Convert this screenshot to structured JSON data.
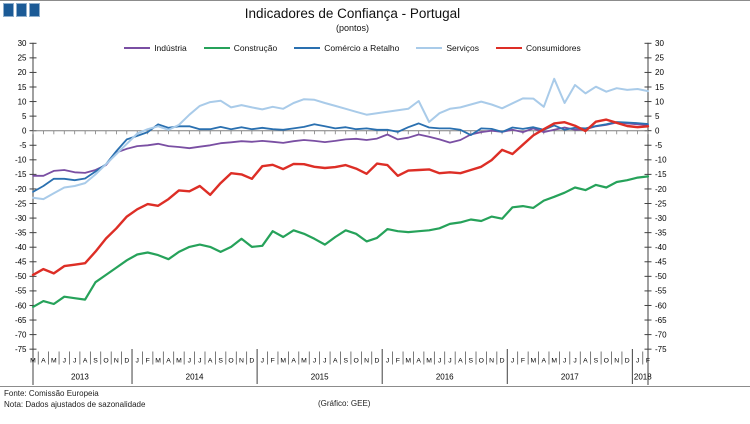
{
  "logo": {
    "square_count": 3,
    "fill": "#1b5a96",
    "border": "#8fafcd"
  },
  "footer": {
    "fonte": "Fonte: Comissão Europeia",
    "nota": "Nota: Dados ajustados de sazonalidade",
    "credito": "(Gráfico: GEE)"
  },
  "chart_data": {
    "type": "line",
    "title": "Indicadores de Confiança - Portugal",
    "subtitle": "(pontos)",
    "ylim": [
      -75,
      30
    ],
    "ytick_step": 5,
    "zero_line": true,
    "legend_position": "top",
    "axis_color": "#404040",
    "zero_line_color": "#7f7f7f",
    "x_labels": [
      "M",
      "A",
      "M",
      "J",
      "J",
      "A",
      "S",
      "O",
      "N",
      "D",
      "J",
      "F",
      "M",
      "A",
      "M",
      "J",
      "J",
      "A",
      "S",
      "O",
      "N",
      "D",
      "J",
      "F",
      "M",
      "A",
      "M",
      "J",
      "J",
      "A",
      "S",
      "O",
      "N",
      "D",
      "J",
      "F",
      "M",
      "A",
      "M",
      "J",
      "J",
      "A",
      "S",
      "O",
      "N",
      "D",
      "J",
      "F",
      "M",
      "A",
      "M",
      "J",
      "J",
      "A",
      "S",
      "O",
      "N",
      "D",
      "J",
      "F"
    ],
    "years": [
      {
        "label": "2013",
        "start": 0,
        "count": 10
      },
      {
        "label": "2014",
        "start": 10,
        "count": 12
      },
      {
        "label": "2015",
        "start": 22,
        "count": 12
      },
      {
        "label": "2016",
        "start": 34,
        "count": 12
      },
      {
        "label": "2017",
        "start": 46,
        "count": 12
      },
      {
        "label": "2018",
        "start": 58,
        "count": 2
      }
    ],
    "series": [
      {
        "name": "Indústria",
        "color": "#7a4fa3",
        "values": [
          -15.5,
          -15.5,
          -13.8,
          -13.5,
          -14.3,
          -14.5,
          -13.5,
          -11.8,
          -7.5,
          -6.2,
          -5.3,
          -5.0,
          -4.5,
          -5.3,
          -5.6,
          -6.0,
          -5.5,
          -5.0,
          -4.3,
          -4.0,
          -3.6,
          -3.8,
          -3.5,
          -3.8,
          -4.2,
          -3.6,
          -3.2,
          -3.5,
          -3.9,
          -3.5,
          -3.0,
          -2.8,
          -3.2,
          -2.7,
          -1.3,
          -3.0,
          -2.4,
          -1.3,
          -2.1,
          -3.0,
          -4.1,
          -3.2,
          -1.3,
          -0.5,
          0.0,
          -0.4,
          0.3,
          -0.5,
          0.8,
          -0.5,
          0.3,
          1.1,
          0.3,
          0.5,
          1.5,
          2.0,
          2.8,
          2.5,
          2.2,
          2.0
        ]
      },
      {
        "name": "Construção",
        "color": "#26a25a",
        "values": [
          -60.5,
          -58.5,
          -59.5,
          -57.0,
          -57.5,
          -58.0,
          -52.0,
          -49.5,
          -47.0,
          -44.5,
          -42.5,
          -41.8,
          -42.7,
          -44.1,
          -41.6,
          -39.9,
          -39.1,
          -39.9,
          -41.6,
          -39.9,
          -37.1,
          -39.9,
          -39.5,
          -34.5,
          -36.5,
          -34.2,
          -35.4,
          -37.1,
          -39.1,
          -36.5,
          -34.2,
          -35.4,
          -38.0,
          -36.8,
          -33.8,
          -34.5,
          -34.8,
          -34.5,
          -34.2,
          -33.5,
          -32.0,
          -31.5,
          -30.5,
          -31.0,
          -29.5,
          -30.2,
          -26.3,
          -25.9,
          -26.5,
          -24.0,
          -22.7,
          -21.3,
          -19.5,
          -20.4,
          -18.6,
          -19.5,
          -17.6,
          -17.0,
          -16.1,
          -15.7
        ]
      },
      {
        "name": "Comércio a Retalho",
        "color": "#2a70b0",
        "values": [
          -21.0,
          -19.0,
          -16.5,
          -16.5,
          -17.0,
          -16.4,
          -14.0,
          -11.5,
          -7.0,
          -3.0,
          -1.8,
          -0.5,
          2.2,
          1.0,
          1.5,
          1.5,
          0.5,
          0.5,
          1.3,
          0.5,
          1.2,
          0.5,
          1.0,
          0.5,
          0.3,
          0.8,
          1.3,
          2.2,
          1.5,
          0.8,
          1.2,
          0.5,
          0.8,
          0.3,
          0.3,
          -0.4,
          1.2,
          2.5,
          1.1,
          0.8,
          0.8,
          0.3,
          -1.5,
          0.8,
          0.6,
          -0.4,
          1.1,
          0.6,
          1.2,
          0.3,
          1.8,
          0.3,
          1.0,
          0.8,
          1.6,
          2.2,
          3.0,
          2.8,
          2.6,
          2.3
        ]
      },
      {
        "name": "Serviços",
        "color": "#a9cbe9",
        "values": [
          -23.0,
          -23.5,
          -21.5,
          -19.5,
          -19.0,
          -18.0,
          -15.0,
          -11.5,
          -8.0,
          -4.5,
          -1.0,
          0.5,
          1.5,
          0.3,
          2.0,
          5.5,
          8.5,
          9.8,
          10.3,
          8.0,
          8.8,
          8.0,
          7.3,
          8.2,
          7.5,
          9.5,
          10.8,
          10.6,
          9.5,
          8.5,
          7.5,
          6.5,
          5.5,
          6.0,
          6.5,
          7.0,
          7.5,
          10.2,
          3.0,
          6.0,
          7.5,
          8.0,
          9.0,
          10.0,
          9.0,
          7.7,
          9.4,
          11.1,
          11.0,
          8.2,
          17.8,
          9.5,
          15.7,
          12.8,
          15.1,
          13.4,
          14.6,
          14.0,
          14.3,
          13.6
        ]
      },
      {
        "name": "Consumidores",
        "color": "#dd2e26",
        "values": [
          -49.5,
          -47.5,
          -49.0,
          -46.5,
          -46.0,
          -45.5,
          -41.5,
          -37.0,
          -33.5,
          -29.5,
          -27.0,
          -25.2,
          -25.8,
          -23.5,
          -20.5,
          -20.8,
          -19.0,
          -22.0,
          -18.0,
          -14.6,
          -15.0,
          -16.5,
          -12.2,
          -11.7,
          -13.2,
          -11.4,
          -11.5,
          -12.4,
          -12.8,
          -12.5,
          -11.8,
          -13.0,
          -14.8,
          -11.3,
          -11.8,
          -15.5,
          -13.7,
          -13.5,
          -13.3,
          -14.6,
          -14.3,
          -14.6,
          -13.5,
          -12.4,
          -10.1,
          -6.6,
          -8.0,
          -4.8,
          -1.6,
          0.5,
          2.5,
          2.9,
          1.7,
          -0.1,
          3.1,
          3.8,
          2.7,
          1.6,
          1.2,
          1.5
        ]
      }
    ]
  }
}
